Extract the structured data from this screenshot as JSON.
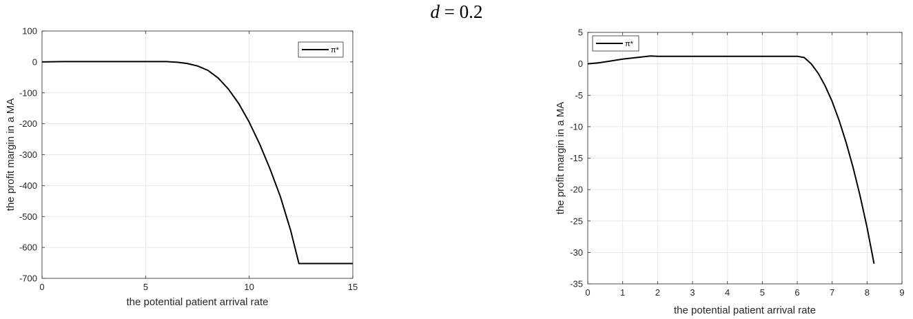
{
  "figure": {
    "title_var": "d",
    "title_rest": " = 0.2"
  },
  "chart_data": [
    {
      "type": "line",
      "xlabel": "the potential patient arrival rate",
      "ylabel": "the profit margin in a MA",
      "xlim": [
        0,
        15
      ],
      "ylim": [
        -700,
        100
      ],
      "xticks": [
        0,
        5,
        10,
        15
      ],
      "yticks": [
        100,
        0,
        -100,
        -200,
        -300,
        -400,
        -500,
        -600,
        -700
      ],
      "grid": true,
      "legend_position": "top-right",
      "series": [
        {
          "name": "π*",
          "color": "#000000",
          "x": [
            0,
            1,
            2,
            3,
            4,
            5,
            6,
            6.5,
            7,
            7.5,
            8,
            8.5,
            9,
            9.5,
            10,
            10.5,
            11,
            11.5,
            12,
            12.4,
            13,
            14,
            15
          ],
          "y": [
            0,
            1,
            1,
            1,
            1,
            1,
            1,
            -1,
            -5,
            -13,
            -27,
            -52,
            -88,
            -135,
            -195,
            -265,
            -345,
            -435,
            -545,
            -652,
            -652,
            -652,
            -652
          ]
        }
      ]
    },
    {
      "type": "line",
      "xlabel": "the potential patient arrival rate",
      "ylabel": "the profit margin in a MA",
      "xlim": [
        0,
        9
      ],
      "ylim": [
        -35,
        5
      ],
      "xticks": [
        0,
        1,
        2,
        3,
        4,
        5,
        6,
        7,
        8,
        9
      ],
      "yticks": [
        5,
        0,
        -5,
        -10,
        -15,
        -20,
        -25,
        -30,
        -35
      ],
      "grid": true,
      "legend_position": "top-left",
      "series": [
        {
          "name": "π*",
          "color": "#000000",
          "x": [
            0,
            0.3,
            0.6,
            1.0,
            1.4,
            1.8,
            2.0,
            3,
            4,
            5,
            6.0,
            6.2,
            6.4,
            6.6,
            6.8,
            7.0,
            7.2,
            7.4,
            7.6,
            7.8,
            8.0,
            8.2
          ],
          "y": [
            0,
            0.15,
            0.4,
            0.75,
            1.0,
            1.25,
            1.2,
            1.2,
            1.2,
            1.2,
            1.2,
            1.0,
            0.0,
            -1.5,
            -3.5,
            -6.0,
            -9.0,
            -12.5,
            -16.5,
            -21.0,
            -26.0,
            -31.8
          ]
        }
      ]
    }
  ]
}
